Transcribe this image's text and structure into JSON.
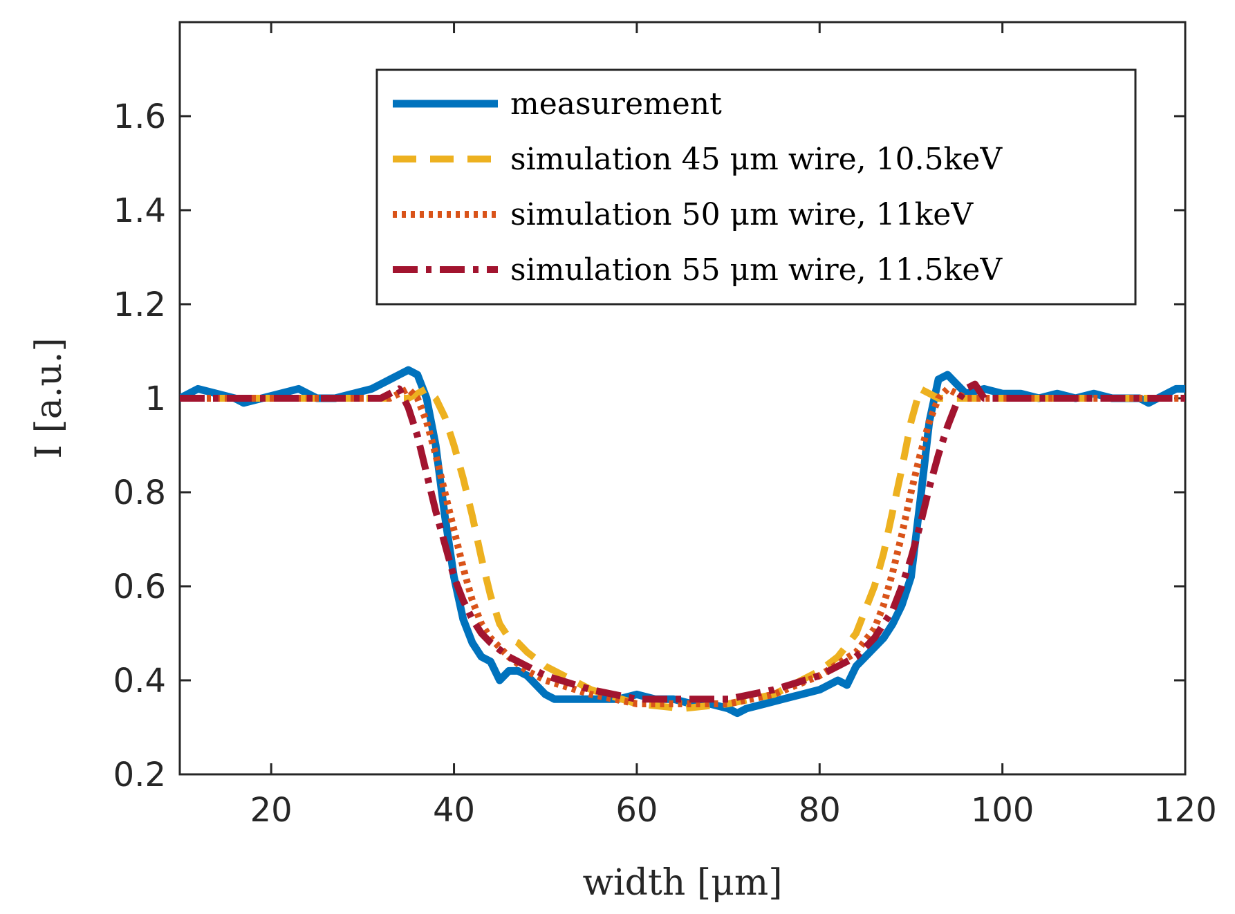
{
  "chart_data": {
    "type": "line",
    "title": "",
    "xlabel": "width [μm]",
    "ylabel": "I [a.u.]",
    "xlim": [
      10,
      120
    ],
    "ylim": [
      0.2,
      1.8
    ],
    "x_ticks": [
      20,
      40,
      60,
      80,
      100,
      120
    ],
    "x_tick_labels": [
      "20",
      "40",
      "60",
      "80",
      "100",
      "120"
    ],
    "y_ticks": [
      0.2,
      0.4,
      0.6,
      0.8,
      1.0,
      1.2,
      1.4,
      1.6
    ],
    "y_tick_labels": [
      "0.2",
      "0.4",
      "0.6",
      "0.8",
      "1",
      "1.2",
      "1.4",
      "1.6"
    ],
    "grid": false,
    "legend_position": "top-right",
    "series": [
      {
        "name": "measurement",
        "color": "#0072BD",
        "style": "solid",
        "x": [
          10,
          12,
          14,
          16,
          17,
          19,
          21,
          23,
          25,
          27,
          29,
          31,
          32,
          33,
          34,
          35,
          36,
          37,
          38,
          39,
          40,
          41,
          42,
          43,
          44,
          45,
          46,
          47,
          48,
          49,
          50,
          51,
          52,
          54,
          56,
          58,
          60,
          62,
          64,
          66,
          68,
          70,
          71,
          72,
          74,
          76,
          78,
          80,
          82,
          83,
          84,
          85,
          86,
          87,
          88,
          89,
          90,
          91,
          92,
          93,
          94,
          95,
          96,
          98,
          100,
          102,
          104,
          106,
          108,
          110,
          112,
          114,
          115,
          116,
          117,
          118,
          119,
          120
        ],
        "y": [
          1.0,
          1.02,
          1.01,
          1.0,
          0.99,
          1.0,
          1.01,
          1.02,
          1.0,
          1.0,
          1.01,
          1.02,
          1.03,
          1.04,
          1.05,
          1.06,
          1.05,
          1.0,
          0.9,
          0.75,
          0.62,
          0.53,
          0.48,
          0.45,
          0.44,
          0.4,
          0.42,
          0.42,
          0.41,
          0.39,
          0.37,
          0.36,
          0.36,
          0.36,
          0.36,
          0.36,
          0.37,
          0.36,
          0.36,
          0.35,
          0.35,
          0.34,
          0.33,
          0.34,
          0.35,
          0.36,
          0.37,
          0.38,
          0.4,
          0.39,
          0.43,
          0.45,
          0.47,
          0.49,
          0.52,
          0.56,
          0.62,
          0.78,
          0.95,
          1.04,
          1.05,
          1.03,
          1.01,
          1.02,
          1.01,
          1.01,
          1.0,
          1.01,
          1.0,
          1.01,
          1.0,
          1.0,
          1.0,
          0.99,
          1.0,
          1.01,
          1.02,
          1.02
        ]
      },
      {
        "name": "simulation 45 μm wire, 10.5keV",
        "color": "#EDB120",
        "style": "dashed",
        "x": [
          10,
          20,
          30,
          35,
          36,
          37,
          38,
          39,
          40,
          41,
          42,
          43,
          44,
          45,
          46,
          47,
          48,
          50,
          55,
          60,
          65,
          70,
          75,
          80,
          82,
          84,
          85,
          86,
          87,
          88,
          89,
          90,
          91,
          92,
          93,
          94,
          96,
          100,
          110,
          120
        ],
        "y": [
          1.0,
          1.0,
          1.0,
          1.0,
          1.01,
          1.02,
          1.0,
          0.96,
          0.9,
          0.83,
          0.75,
          0.66,
          0.58,
          0.52,
          0.49,
          0.48,
          0.46,
          0.43,
          0.38,
          0.35,
          0.34,
          0.35,
          0.37,
          0.42,
          0.45,
          0.5,
          0.55,
          0.6,
          0.67,
          0.76,
          0.85,
          0.95,
          1.02,
          1.01,
          1.0,
          1.0,
          1.0,
          1.0,
          1.0,
          1.0
        ]
      },
      {
        "name": "simulation 50 μm wire, 11keV",
        "color": "#D95319",
        "style": "dotted",
        "x": [
          10,
          20,
          30,
          33,
          34,
          35,
          36,
          37,
          38,
          39,
          40,
          41,
          42,
          43,
          44,
          45,
          46,
          48,
          50,
          55,
          60,
          65,
          70,
          75,
          80,
          84,
          86,
          87,
          88,
          89,
          90,
          91,
          92,
          93,
          94,
          95,
          96,
          100,
          110,
          120
        ],
        "y": [
          1.0,
          1.0,
          1.0,
          1.0,
          1.01,
          1.02,
          1.0,
          0.95,
          0.88,
          0.8,
          0.72,
          0.64,
          0.57,
          0.52,
          0.49,
          0.47,
          0.45,
          0.42,
          0.4,
          0.37,
          0.35,
          0.35,
          0.35,
          0.37,
          0.41,
          0.46,
          0.51,
          0.56,
          0.63,
          0.71,
          0.8,
          0.88,
          0.95,
          1.0,
          1.02,
          1.01,
          1.0,
          1.0,
          1.0,
          1.0
        ]
      },
      {
        "name": "simulation 55 μm wire, 11.5keV",
        "color": "#A2142F",
        "style": "dashdot",
        "x": [
          10,
          20,
          30,
          32,
          33,
          34,
          35,
          36,
          37,
          38,
          39,
          40,
          41,
          42,
          43,
          44,
          46,
          48,
          50,
          55,
          60,
          65,
          70,
          75,
          80,
          84,
          86,
          88,
          89,
          90,
          91,
          92,
          93,
          94,
          95,
          96,
          97,
          98,
          100,
          110,
          120
        ],
        "y": [
          1.0,
          1.0,
          1.0,
          1.0,
          1.01,
          1.02,
          0.98,
          0.92,
          0.84,
          0.76,
          0.69,
          0.62,
          0.57,
          0.53,
          0.5,
          0.48,
          0.45,
          0.43,
          0.41,
          0.38,
          0.36,
          0.36,
          0.36,
          0.38,
          0.41,
          0.45,
          0.49,
          0.55,
          0.6,
          0.66,
          0.73,
          0.81,
          0.88,
          0.94,
          0.99,
          1.02,
          1.03,
          1.0,
          1.0,
          1.0,
          1.0
        ]
      }
    ]
  }
}
